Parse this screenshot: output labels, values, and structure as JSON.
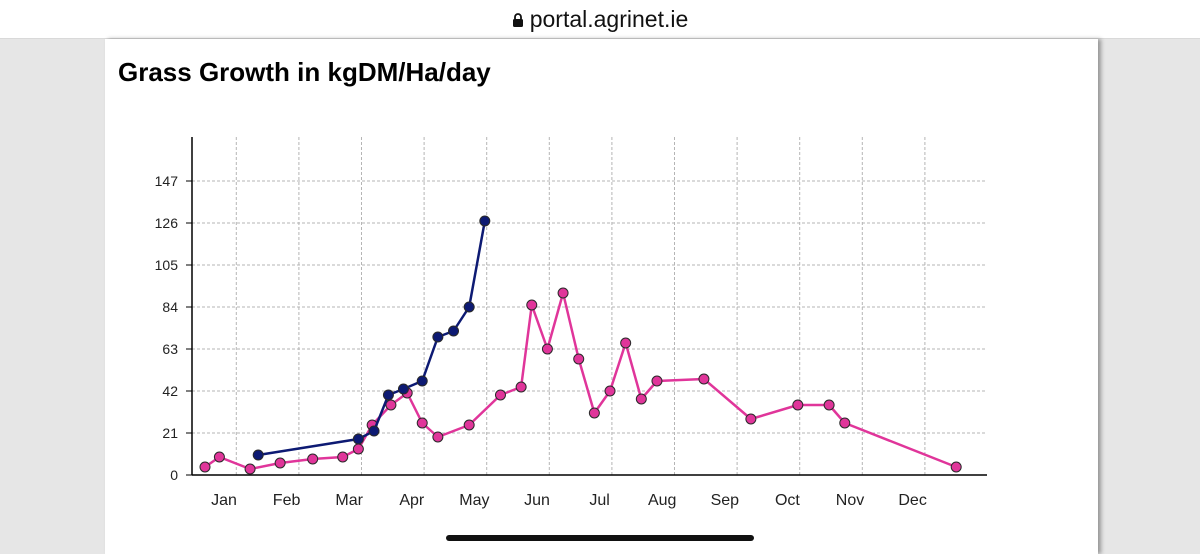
{
  "browser": {
    "url": "portal.agrinet.ie",
    "lock_icon": "lock-icon"
  },
  "page": {
    "title": "Grass Growth in kgDM/Ha/day"
  },
  "colors": {
    "series_current": "#0d1a73",
    "series_reference": "#e0359a",
    "grid": "#b5b5b5",
    "axis": "#000000"
  },
  "chart_data": {
    "type": "line",
    "title": "Grass Growth in kgDM/Ha/day",
    "xlabel": "",
    "ylabel": "",
    "x_unit": "month index (0 = Jan, 11 = Dec)",
    "xlim": [
      0,
      12
    ],
    "ylim": [
      0,
      168
    ],
    "yticks": [
      0,
      21,
      42,
      63,
      84,
      105,
      126,
      147
    ],
    "xtick_labels": [
      "Jan",
      "Feb",
      "Mar",
      "Apr",
      "May",
      "Jun",
      "Jul",
      "Aug",
      "Sep",
      "Oct",
      "Nov",
      "Dec"
    ],
    "grid": true,
    "legend": "none",
    "series": [
      {
        "color_key": "series_current",
        "points": [
          {
            "x": 0.85,
            "y": 10
          },
          {
            "x": 2.45,
            "y": 18
          },
          {
            "x": 2.7,
            "y": 22
          },
          {
            "x": 2.93,
            "y": 40
          },
          {
            "x": 3.17,
            "y": 43
          },
          {
            "x": 3.47,
            "y": 47
          },
          {
            "x": 3.72,
            "y": 69
          },
          {
            "x": 3.97,
            "y": 72
          },
          {
            "x": 4.22,
            "y": 84
          },
          {
            "x": 4.47,
            "y": 127
          }
        ]
      },
      {
        "color_key": "series_reference",
        "points": [
          {
            "x": 0.0,
            "y": 4
          },
          {
            "x": 0.23,
            "y": 9
          },
          {
            "x": 0.72,
            "y": 3
          },
          {
            "x": 1.2,
            "y": 6
          },
          {
            "x": 1.72,
            "y": 8
          },
          {
            "x": 2.2,
            "y": 9
          },
          {
            "x": 2.45,
            "y": 13
          },
          {
            "x": 2.67,
            "y": 25
          },
          {
            "x": 2.97,
            "y": 35
          },
          {
            "x": 3.23,
            "y": 41
          },
          {
            "x": 3.47,
            "y": 26
          },
          {
            "x": 3.72,
            "y": 19
          },
          {
            "x": 4.22,
            "y": 25
          },
          {
            "x": 4.72,
            "y": 40
          },
          {
            "x": 5.05,
            "y": 44
          },
          {
            "x": 5.22,
            "y": 85
          },
          {
            "x": 5.47,
            "y": 63
          },
          {
            "x": 5.72,
            "y": 91
          },
          {
            "x": 5.97,
            "y": 58
          },
          {
            "x": 6.22,
            "y": 31
          },
          {
            "x": 6.47,
            "y": 42
          },
          {
            "x": 6.72,
            "y": 66
          },
          {
            "x": 6.97,
            "y": 38
          },
          {
            "x": 7.22,
            "y": 47
          },
          {
            "x": 7.97,
            "y": 48
          },
          {
            "x": 8.72,
            "y": 28
          },
          {
            "x": 9.47,
            "y": 35
          },
          {
            "x": 9.97,
            "y": 35
          },
          {
            "x": 10.22,
            "y": 26
          },
          {
            "x": 12.0,
            "y": 4
          }
        ]
      }
    ]
  }
}
